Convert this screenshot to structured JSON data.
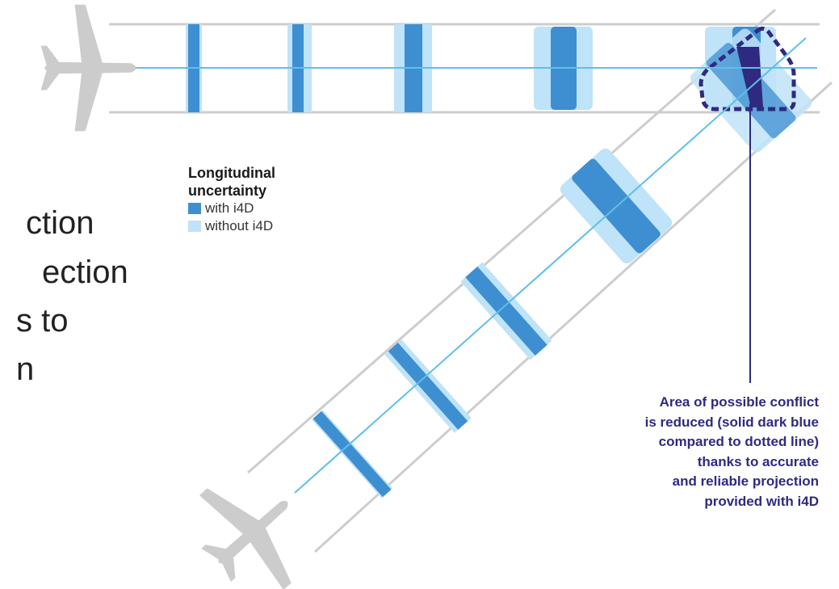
{
  "colors": {
    "track_line": "#cdcdcd",
    "center_line": "#5fbfe7",
    "with_i4d": "#3e8fd2",
    "without_i4d": "#bfe3f8",
    "conflict": "#2f2a80",
    "plane": "#cccccc"
  },
  "partial_text": [
    "ction",
    "ection",
    "s to",
    "n"
  ],
  "legend": {
    "title_line1": "Longitudinal",
    "title_line2": "uncertainty",
    "with_label": "with i4D",
    "without_label": "without i4D"
  },
  "callout": {
    "lines": [
      "Area of possible conflict",
      "is reduced (solid dark blue",
      "compared to dotted line)",
      "thanks to accurate",
      "and reliable projection",
      "provided with i4D"
    ]
  },
  "icons": [
    "airplane-horizontal-icon",
    "airplane-diagonal-icon"
  ]
}
